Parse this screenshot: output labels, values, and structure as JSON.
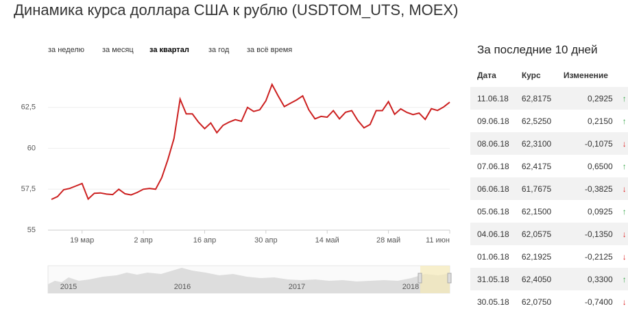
{
  "header": {
    "title": "Динамика курса доллара США к рублю (USDTOM_UTS, MOEX)"
  },
  "tabs": {
    "items": [
      "за неделю",
      "за месяц",
      "за квартал",
      "за год",
      "за всё время"
    ],
    "active": 2
  },
  "chart_data": {
    "type": "line",
    "categories": [
      null,
      null,
      null,
      null,
      null,
      "19 мар",
      null,
      null,
      null,
      null,
      null,
      null,
      null,
      null,
      null,
      "2 апр",
      null,
      null,
      null,
      null,
      null,
      null,
      null,
      null,
      null,
      "16 апр",
      null,
      null,
      null,
      null,
      null,
      null,
      null,
      null,
      null,
      "30 апр",
      null,
      null,
      null,
      null,
      null,
      null,
      null,
      null,
      null,
      "14 май",
      null,
      null,
      null,
      null,
      null,
      null,
      null,
      null,
      null,
      "28 май",
      null,
      null,
      null,
      null,
      null,
      null,
      null,
      null,
      null,
      "11 июн"
    ],
    "series": [
      {
        "name": "USDTOM_UTS",
        "color": "#cc1f1f",
        "values": [
          56.88,
          57.05,
          57.47,
          57.55,
          57.7,
          57.85,
          56.9,
          57.25,
          57.27,
          57.2,
          57.17,
          57.5,
          57.22,
          57.15,
          57.3,
          57.5,
          57.55,
          57.5,
          58.2,
          59.3,
          60.6,
          63.0,
          62.1,
          62.1,
          61.6,
          61.2,
          61.55,
          60.95,
          61.4,
          61.6,
          61.75,
          61.65,
          62.5,
          62.25,
          62.35,
          62.9,
          63.9,
          63.2,
          62.55,
          62.75,
          62.95,
          63.2,
          62.35,
          61.8,
          61.95,
          61.9,
          62.3,
          61.8,
          62.2,
          62.3,
          61.7,
          61.25,
          61.45,
          62.3,
          62.3,
          62.85,
          62.075,
          62.405,
          62.1925,
          62.0575,
          62.15,
          61.7675,
          62.4175,
          62.31,
          62.525,
          62.8175
        ]
      }
    ],
    "ylim": [
      55,
      65
    ],
    "yticks": [
      55,
      {
        "value": 57.5,
        "label": "57,5"
      },
      60,
      {
        "value": 62.5,
        "label": "62,5"
      }
    ],
    "grid": true
  },
  "navigator": {
    "years": [
      "2015",
      "2016",
      "2017",
      "2018"
    ]
  },
  "table": {
    "title": "За последние 10 дней",
    "headers": [
      "Дата",
      "Курс",
      "Изменение"
    ],
    "rows": [
      [
        "11.06.18",
        "62,8175",
        "0,2925"
      ],
      [
        "09.06.18",
        "62,5250",
        "0,2150"
      ],
      [
        "08.06.18",
        "62,3100",
        "-0,1075"
      ],
      [
        "07.06.18",
        "62,4175",
        "0,6500"
      ],
      [
        "06.06.18",
        "61,7675",
        "-0,3825"
      ],
      [
        "05.06.18",
        "62,1500",
        "0,0925"
      ],
      [
        "04.06.18",
        "62,0575",
        "-0,1350"
      ],
      [
        "01.06.18",
        "62,1925",
        "-0,2125"
      ],
      [
        "31.05.18",
        "62,4050",
        "0,3300"
      ],
      [
        "30.05.18",
        "62,0750",
        "-0,7400"
      ]
    ]
  }
}
